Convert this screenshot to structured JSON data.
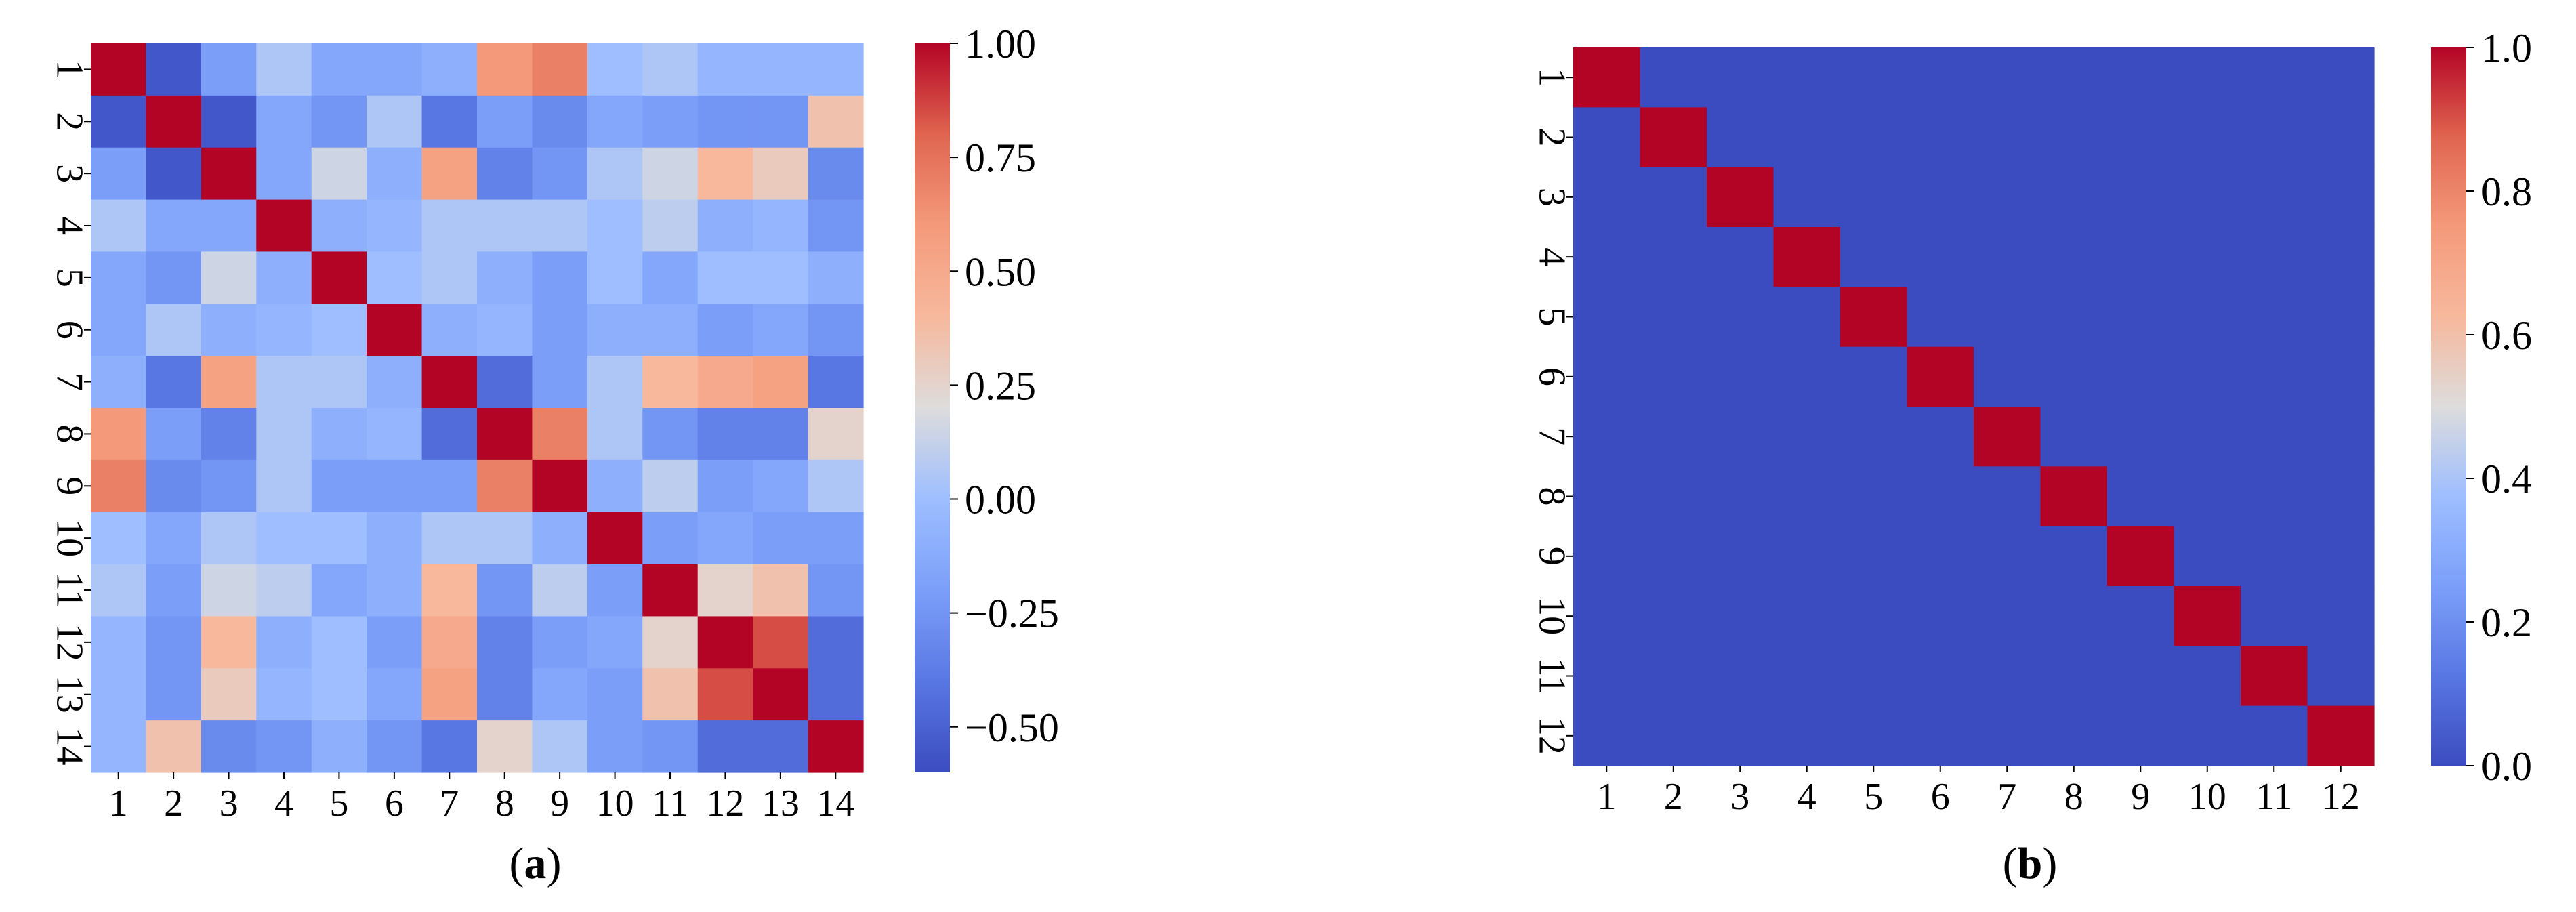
{
  "chart_data": [
    {
      "type": "heatmap",
      "panel_label": "a",
      "x_ticks": [
        "1",
        "2",
        "3",
        "4",
        "5",
        "6",
        "7",
        "8",
        "9",
        "10",
        "11",
        "12",
        "13",
        "14"
      ],
      "y_ticks": [
        "1",
        "2",
        "3",
        "4",
        "5",
        "6",
        "7",
        "8",
        "9",
        "10",
        "11",
        "12",
        "13",
        "14"
      ],
      "colormap": "coolwarm",
      "vmin": -0.6,
      "vmax": 1.0,
      "colorbar_ticks": [
        1.0,
        0.75,
        0.5,
        0.25,
        0.0,
        -0.25,
        -0.5
      ],
      "colorbar_tick_labels": [
        "1.00",
        "0.75",
        "0.50",
        "0.25",
        "0.00",
        "−0.25",
        "−0.50"
      ],
      "values": [
        [
          1.0,
          -0.55,
          -0.2,
          0.05,
          -0.15,
          -0.15,
          -0.1,
          0.6,
          0.7,
          0.0,
          0.05,
          -0.05,
          -0.05,
          -0.05
        ],
        [
          -0.55,
          1.0,
          -0.55,
          -0.15,
          -0.25,
          0.05,
          -0.4,
          -0.2,
          -0.3,
          -0.15,
          -0.2,
          -0.25,
          -0.25,
          0.35
        ],
        [
          -0.2,
          -0.55,
          1.0,
          -0.15,
          0.15,
          -0.1,
          0.55,
          -0.35,
          -0.25,
          0.05,
          0.15,
          0.4,
          0.3,
          -0.3
        ],
        [
          0.05,
          -0.15,
          -0.15,
          1.0,
          -0.1,
          -0.05,
          0.05,
          0.05,
          0.05,
          0.0,
          0.1,
          -0.1,
          -0.05,
          -0.25
        ],
        [
          -0.15,
          -0.25,
          0.15,
          -0.1,
          1.0,
          0.0,
          0.05,
          -0.1,
          -0.2,
          0.0,
          -0.15,
          0.0,
          0.0,
          -0.1
        ],
        [
          -0.15,
          0.05,
          -0.1,
          -0.05,
          0.0,
          1.0,
          -0.1,
          -0.05,
          -0.2,
          -0.1,
          -0.1,
          -0.2,
          -0.15,
          -0.25
        ],
        [
          -0.1,
          -0.4,
          0.55,
          0.05,
          0.05,
          -0.1,
          1.0,
          -0.45,
          -0.2,
          0.05,
          0.4,
          0.5,
          0.55,
          -0.4
        ],
        [
          0.6,
          -0.2,
          -0.35,
          0.05,
          -0.1,
          -0.05,
          -0.45,
          1.0,
          0.7,
          0.05,
          -0.25,
          -0.35,
          -0.35,
          0.25
        ],
        [
          0.7,
          -0.3,
          -0.25,
          0.05,
          -0.2,
          -0.2,
          -0.2,
          0.7,
          1.0,
          -0.1,
          0.1,
          -0.2,
          -0.15,
          0.05
        ],
        [
          0.0,
          -0.15,
          0.05,
          0.0,
          0.0,
          -0.1,
          0.05,
          0.05,
          -0.1,
          1.0,
          -0.2,
          -0.15,
          -0.2,
          -0.2
        ],
        [
          0.05,
          -0.2,
          0.15,
          0.1,
          -0.15,
          -0.1,
          0.4,
          -0.25,
          0.1,
          -0.2,
          1.0,
          0.25,
          0.35,
          -0.25
        ],
        [
          -0.05,
          -0.25,
          0.4,
          -0.1,
          0.0,
          -0.2,
          0.5,
          -0.35,
          -0.2,
          -0.15,
          0.25,
          1.0,
          0.85,
          -0.45
        ],
        [
          -0.05,
          -0.25,
          0.3,
          -0.05,
          0.0,
          -0.15,
          0.55,
          -0.35,
          -0.15,
          -0.2,
          0.35,
          0.85,
          1.0,
          -0.45
        ],
        [
          -0.05,
          0.35,
          -0.3,
          -0.25,
          -0.1,
          -0.25,
          -0.4,
          0.25,
          0.05,
          -0.2,
          -0.25,
          -0.45,
          -0.45,
          1.0
        ]
      ]
    },
    {
      "type": "heatmap",
      "panel_label": "b",
      "x_ticks": [
        "1",
        "2",
        "3",
        "4",
        "5",
        "6",
        "7",
        "8",
        "9",
        "10",
        "11",
        "12"
      ],
      "y_ticks": [
        "1",
        "2",
        "3",
        "4",
        "5",
        "6",
        "7",
        "8",
        "9",
        "10",
        "11",
        "12"
      ],
      "colormap": "coolwarm",
      "vmin": 0.0,
      "vmax": 1.0,
      "colorbar_ticks": [
        1.0,
        0.8,
        0.6,
        0.4,
        0.2,
        0.0
      ],
      "colorbar_tick_labels": [
        "1.0",
        "0.8",
        "0.6",
        "0.4",
        "0.2",
        "0.0"
      ],
      "values": [
        [
          1,
          0,
          0,
          0,
          0,
          0,
          0,
          0,
          0,
          0,
          0,
          0
        ],
        [
          0,
          1,
          0,
          0,
          0,
          0,
          0,
          0,
          0,
          0,
          0,
          0
        ],
        [
          0,
          0,
          1,
          0,
          0,
          0,
          0,
          0,
          0,
          0,
          0,
          0
        ],
        [
          0,
          0,
          0,
          1,
          0,
          0,
          0,
          0,
          0,
          0,
          0,
          0
        ],
        [
          0,
          0,
          0,
          0,
          1,
          0,
          0,
          0,
          0,
          0,
          0,
          0
        ],
        [
          0,
          0,
          0,
          0,
          0,
          1,
          0,
          0,
          0,
          0,
          0,
          0
        ],
        [
          0,
          0,
          0,
          0,
          0,
          0,
          1,
          0,
          0,
          0,
          0,
          0
        ],
        [
          0,
          0,
          0,
          0,
          0,
          0,
          0,
          1,
          0,
          0,
          0,
          0
        ],
        [
          0,
          0,
          0,
          0,
          0,
          0,
          0,
          0,
          1,
          0,
          0,
          0
        ],
        [
          0,
          0,
          0,
          0,
          0,
          0,
          0,
          0,
          0,
          1,
          0,
          0
        ],
        [
          0,
          0,
          0,
          0,
          0,
          0,
          0,
          0,
          0,
          0,
          1,
          0
        ],
        [
          0,
          0,
          0,
          0,
          0,
          0,
          0,
          0,
          0,
          0,
          0,
          1
        ]
      ]
    }
  ]
}
